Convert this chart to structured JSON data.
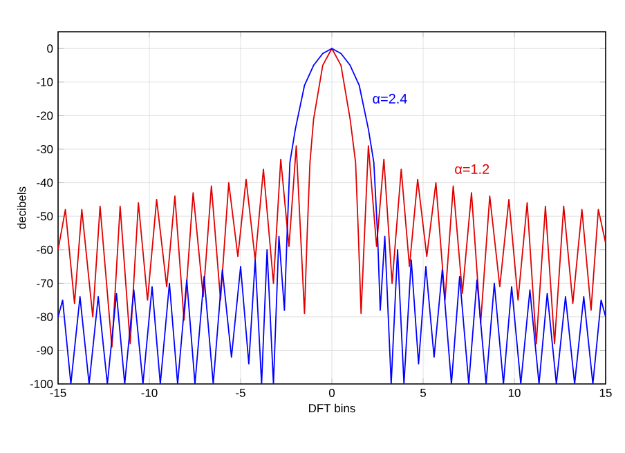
{
  "chart_data": {
    "type": "line",
    "xlabel": "DFT bins",
    "ylabel": "decibels",
    "xlim": [
      -15,
      15
    ],
    "ylim": [
      -100,
      5
    ],
    "xticks": [
      -15,
      -10,
      -5,
      0,
      5,
      10,
      15
    ],
    "yticks": [
      0,
      -10,
      -20,
      -30,
      -40,
      -50,
      -60,
      -70,
      -80,
      -90,
      -100
    ],
    "grid": true,
    "marker": "none",
    "line_style": "solid",
    "series": [
      {
        "name": "α=1.2",
        "color": "#e00000",
        "x": [
          -15,
          -14.6,
          -14.1,
          -13.7,
          -13.1,
          -12.7,
          -12.05,
          -11.6,
          -11.05,
          -10.6,
          -10.1,
          -9.6,
          -9.05,
          -8.6,
          -8.1,
          -7.6,
          -7.05,
          -6.6,
          -6.1,
          -5.65,
          -5.15,
          -4.7,
          -4.2,
          -3.75,
          -3.2,
          -2.8,
          -2.35,
          -1.95,
          -1.5,
          -1.35,
          -1.2,
          -1,
          -0.5,
          0,
          0.5,
          1,
          1.3,
          1.45,
          1.6,
          2.0,
          2.45,
          2.85,
          3.3,
          3.8,
          4.25,
          4.7,
          5.2,
          5.7,
          6.2,
          6.65,
          7.15,
          7.65,
          8.15,
          8.65,
          9.2,
          9.7,
          10.2,
          10.7,
          11.2,
          11.7,
          12.2,
          12.7,
          13.2,
          13.7,
          14.2,
          14.6,
          15
        ],
        "values": [
          -60,
          -48,
          -76,
          -48,
          -80,
          -47,
          -89,
          -47,
          -88,
          -46,
          -75,
          -45,
          -71,
          -44,
          -81,
          -43,
          -74,
          -41,
          -75,
          -40,
          -62,
          -39,
          -63,
          -36,
          -70,
          -33,
          -59,
          -29,
          -79,
          -55,
          -34,
          -21,
          -5,
          0,
          -5,
          -21,
          -34,
          -55,
          -79,
          -29,
          -59,
          -33,
          -70,
          -36,
          -65,
          -39,
          -62,
          -40,
          -75,
          -41,
          -73,
          -43,
          -82,
          -44,
          -71,
          -45,
          -75,
          -46,
          -88,
          -47,
          -88,
          -47,
          -76,
          -48,
          -78,
          -48,
          -58
        ]
      },
      {
        "name": "α=2.4",
        "color": "#0000ff",
        "x": [
          -15,
          -14.75,
          -14.3,
          -13.8,
          -13.3,
          -12.8,
          -12.3,
          -11.8,
          -11.35,
          -10.85,
          -10.35,
          -9.85,
          -9.4,
          -8.9,
          -8.45,
          -7.95,
          -7.5,
          -7.0,
          -6.5,
          -6.0,
          -5.5,
          -5.0,
          -4.55,
          -4.2,
          -3.85,
          -3.55,
          -3.2,
          -2.9,
          -2.6,
          -2.45,
          -2.3,
          -2,
          -1.5,
          -1,
          -0.5,
          0,
          0.5,
          1,
          1.5,
          2,
          2.3,
          2.5,
          2.65,
          2.9,
          3.25,
          3.6,
          3.95,
          4.35,
          4.75,
          5.15,
          5.6,
          6.05,
          6.55,
          7.0,
          7.5,
          7.95,
          8.45,
          8.9,
          9.4,
          9.85,
          10.35,
          10.85,
          11.35,
          11.8,
          12.3,
          12.8,
          13.3,
          13.8,
          14.3,
          14.75,
          15
        ],
        "values": [
          -80,
          -75,
          -100,
          -74,
          -100,
          -74,
          -100,
          -73,
          -100,
          -72,
          -100,
          -71,
          -100,
          -70,
          -100,
          -69,
          -100,
          -68,
          -100,
          -66,
          -92,
          -65,
          -94,
          -63,
          -100,
          -60,
          -100,
          -56,
          -78,
          -55,
          -34,
          -24,
          -11,
          -5,
          -1.5,
          0,
          -1.5,
          -5,
          -11,
          -24,
          -34,
          -55,
          -78,
          -56,
          -100,
          -60,
          -100,
          -63,
          -94,
          -65,
          -92,
          -66,
          -100,
          -68,
          -100,
          -69,
          -100,
          -70,
          -100,
          -71,
          -100,
          -72,
          -100,
          -73,
          -100,
          -74,
          -100,
          -74,
          -100,
          -75,
          -80
        ]
      }
    ]
  }
}
